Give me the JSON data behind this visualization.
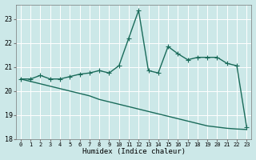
{
  "xlabel": "Humidex (Indice chaleur)",
  "bg_color": "#cce8e8",
  "grid_color": "#ffffff",
  "line_color": "#1a6b5a",
  "x": [
    0,
    1,
    2,
    3,
    4,
    5,
    6,
    7,
    8,
    9,
    10,
    11,
    12,
    13,
    14,
    15,
    16,
    17,
    18,
    19,
    20,
    21,
    22,
    23
  ],
  "y_jagged": [
    20.5,
    20.5,
    20.65,
    20.5,
    20.5,
    20.6,
    20.7,
    20.75,
    20.85,
    20.75,
    21.05,
    22.2,
    23.35,
    20.85,
    20.75,
    21.85,
    21.55,
    21.3,
    21.4,
    21.4,
    21.4,
    21.15,
    21.05,
    18.5
  ],
  "y_smooth": [
    20.5,
    20.4,
    20.3,
    20.2,
    20.1,
    20.0,
    19.9,
    19.8,
    19.65,
    19.55,
    19.45,
    19.35,
    19.25,
    19.15,
    19.05,
    18.95,
    18.85,
    18.75,
    18.65,
    18.55,
    18.5,
    18.45,
    18.42,
    18.4
  ],
  "ylim": [
    18.0,
    23.6
  ],
  "xlim": [
    -0.5,
    23.5
  ],
  "yticks": [
    18,
    19,
    20,
    21,
    22,
    23
  ],
  "xticks": [
    0,
    1,
    2,
    3,
    4,
    5,
    6,
    7,
    8,
    9,
    10,
    11,
    12,
    13,
    14,
    15,
    16,
    17,
    18,
    19,
    20,
    21,
    22,
    23
  ],
  "marker": "+",
  "markersize": 4,
  "linewidth": 1.0
}
